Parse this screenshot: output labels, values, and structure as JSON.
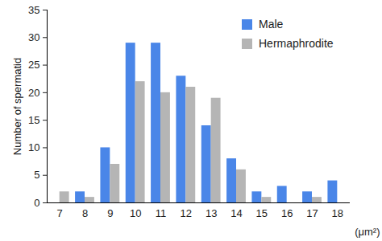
{
  "chart_data": {
    "type": "bar",
    "x_label": "(μm²)",
    "y_label": "Number of spermatid",
    "categories": [
      "7",
      "8",
      "9",
      "10",
      "11",
      "12",
      "13",
      "14",
      "15",
      "16",
      "17",
      "18"
    ],
    "series": [
      {
        "name": "Male",
        "color": "#4a86e8",
        "values": [
          0,
          2,
          10,
          29,
          29,
          23,
          14,
          8,
          2,
          3,
          2,
          4
        ]
      },
      {
        "name": "Hermaphrodite",
        "color": "#b5b5b5",
        "values": [
          2,
          1,
          7,
          22,
          20,
          21,
          19,
          6,
          1,
          0,
          1,
          0
        ]
      }
    ],
    "ylim": [
      0,
      35
    ],
    "yticks": [
      0,
      5,
      10,
      15,
      20,
      25,
      30,
      35
    ],
    "grid": false,
    "legend": "top-right"
  }
}
